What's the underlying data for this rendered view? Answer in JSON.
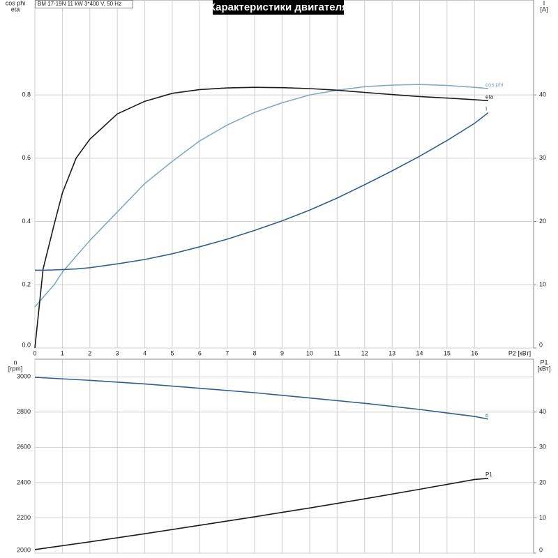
{
  "title": "Характеристики двигателя",
  "info": "BM 17-19N   11 kW   3*400 V, 50 Hz",
  "chart_data": [
    {
      "type": "line",
      "ylabel": [
        "cos phi",
        "eta"
      ],
      "y2label": [
        "I",
        "[A]"
      ],
      "xlabel": "P2 [кВт]",
      "x": [
        0,
        0.3,
        0.7,
        1,
        1.5,
        2,
        3,
        4,
        5,
        6,
        7,
        8,
        9,
        10,
        11,
        12,
        13,
        14,
        15,
        16,
        16.5
      ],
      "xlim": [
        0,
        18.15
      ],
      "xticks": [
        0,
        1,
        2,
        3,
        4,
        5,
        6,
        7,
        8,
        9,
        10,
        11,
        12,
        13,
        14,
        15,
        16
      ],
      "ylim": [
        0,
        1.1
      ],
      "yticks": [
        {
          "value": 0,
          "label": "0.0"
        },
        0.2,
        0.4,
        0.6,
        0.8
      ],
      "y2lim": [
        0,
        55
      ],
      "y2ticks": [
        0,
        10,
        20,
        30,
        40
      ],
      "grid": true,
      "series": [
        {
          "name": "cos phi",
          "color": "#80a8c8",
          "values": [
            0.13,
            0.16,
            0.2,
            0.24,
            0.29,
            0.34,
            0.43,
            0.52,
            0.59,
            0.655,
            0.705,
            0.745,
            0.775,
            0.8,
            0.815,
            0.826,
            0.831,
            0.833,
            0.83,
            0.824,
            0.82
          ]
        },
        {
          "name": "eta",
          "color": "#1a1a1a",
          "values": [
            0,
            0.25,
            0.39,
            0.49,
            0.6,
            0.66,
            0.74,
            0.78,
            0.805,
            0.817,
            0.822,
            0.824,
            0.823,
            0.82,
            0.815,
            0.808,
            0.801,
            0.795,
            0.79,
            0.785,
            0.782
          ]
        },
        {
          "name": "I",
          "color": "#2e5f8f",
          "axis": "y2",
          "values": [
            12.3,
            12.3,
            12.35,
            12.4,
            12.5,
            12.7,
            13.3,
            14.0,
            14.9,
            16.0,
            17.2,
            18.6,
            20.1,
            21.8,
            23.7,
            25.8,
            28.0,
            30.3,
            32.8,
            35.5,
            37.2
          ]
        }
      ]
    },
    {
      "type": "line",
      "ylabel": [
        "n",
        "[rpm]"
      ],
      "y2label": [
        "P1",
        "[кВт]"
      ],
      "x": [
        0,
        2,
        4,
        6,
        8,
        10,
        12,
        14,
        16,
        16.5
      ],
      "xlim": [
        0,
        18.15
      ],
      "ylim": [
        2000,
        3100
      ],
      "yticks": [
        2000,
        2200,
        2400,
        2600,
        2800,
        3000
      ],
      "y2lim": [
        0,
        55
      ],
      "y2ticks": [
        0,
        10,
        20,
        30,
        40
      ],
      "grid": true,
      "series": [
        {
          "name": "n",
          "color": "#2e5f8f",
          "values": [
            2997,
            2980,
            2960,
            2935,
            2910,
            2880,
            2850,
            2815,
            2775,
            2760
          ]
        },
        {
          "name": "P1",
          "color": "#1a1a1a",
          "axis": "y2",
          "values": [
            1,
            3.2,
            5.5,
            7.9,
            10.3,
            12.8,
            15.4,
            18.1,
            20.9,
            21.2
          ]
        }
      ]
    }
  ]
}
